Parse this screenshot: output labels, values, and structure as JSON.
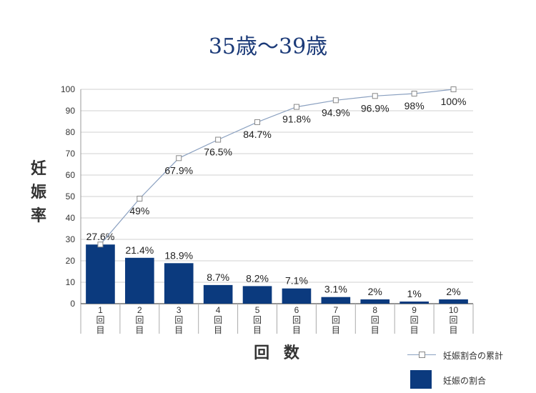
{
  "chart_data": {
    "type": "bar",
    "title": "35歳〜39歳",
    "ylabel": "妊娠率",
    "xlabel": "回 数",
    "ylim": [
      0,
      100
    ],
    "yticks": [
      0,
      10,
      20,
      30,
      40,
      50,
      60,
      70,
      80,
      90,
      100
    ],
    "categories": [
      "1回目",
      "2回目",
      "3回目",
      "4回目",
      "5回目",
      "6回目",
      "7回目",
      "8回目",
      "9回目",
      "10回目"
    ],
    "category_parts": [
      [
        "1",
        "回",
        "目"
      ],
      [
        "2",
        "回",
        "目"
      ],
      [
        "3",
        "回",
        "目"
      ],
      [
        "4",
        "回",
        "目"
      ],
      [
        "5",
        "回",
        "目"
      ],
      [
        "6",
        "回",
        "目"
      ],
      [
        "7",
        "回",
        "目"
      ],
      [
        "8",
        "回",
        "目"
      ],
      [
        "9",
        "回",
        "目"
      ],
      [
        "10",
        "回",
        "目"
      ]
    ],
    "series": [
      {
        "name": "妊娠の割合",
        "kind": "bar",
        "color": "#0b3a7e",
        "values": [
          27.6,
          21.4,
          18.9,
          8.7,
          8.2,
          7.1,
          3.1,
          2,
          1,
          2
        ],
        "labels": [
          "27.6%",
          "21.4%",
          "18.9%",
          "8.7%",
          "8.2%",
          "7.1%",
          "3.1%",
          "2%",
          "1%",
          "2%"
        ]
      },
      {
        "name": "妊娠割合の累計",
        "kind": "line",
        "color": "#8aa0c0",
        "values": [
          27.6,
          49,
          67.9,
          76.5,
          84.7,
          91.8,
          94.9,
          96.9,
          98,
          100
        ],
        "labels": [
          "",
          "49%",
          "67.9%",
          "76.5%",
          "84.7%",
          "91.8%",
          "94.9%",
          "96.9%",
          "98%",
          "100%"
        ]
      }
    ],
    "grid": true,
    "legend_position": "bottom-right"
  }
}
